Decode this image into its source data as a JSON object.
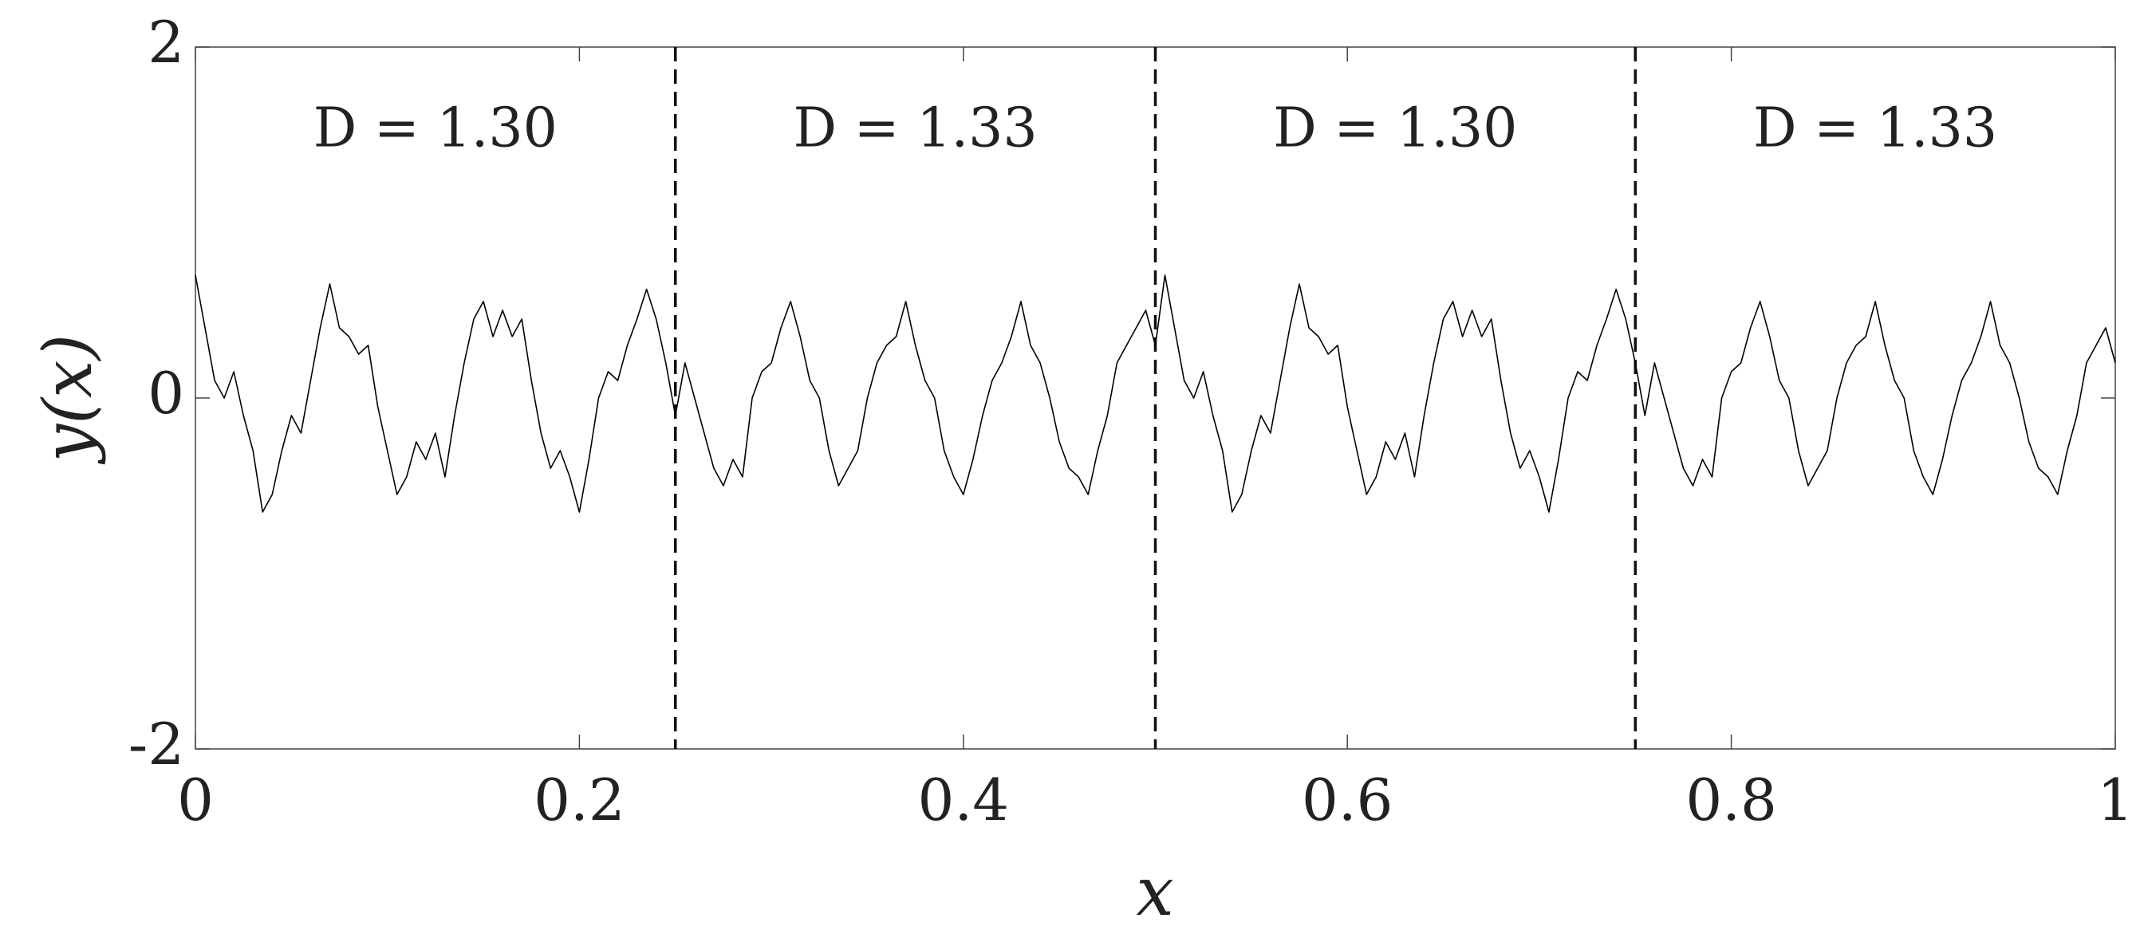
{
  "chart_data": {
    "type": "line",
    "xlabel": "x",
    "ylabel": "y(x)",
    "annotations": [
      "D = 1.30",
      "D = 1.33",
      "D = 1.30",
      "D = 1.33"
    ],
    "vlines": [
      0.25,
      0.5,
      0.75
    ],
    "color": "#000000",
    "xlim": [
      0,
      1
    ],
    "xticks": [
      0,
      0.2,
      0.4,
      0.6,
      0.8,
      1
    ],
    "ylim": [
      -2,
      2
    ],
    "yticks": [
      -2,
      0,
      2
    ],
    "grid": false,
    "x": [
      0,
      0.005,
      0.01,
      0.015,
      0.02,
      0.025,
      0.03,
      0.035,
      0.04,
      0.045,
      0.05,
      0.055,
      0.06,
      0.065,
      0.07,
      0.075,
      0.08,
      0.085,
      0.09,
      0.095,
      0.1,
      0.105,
      0.11,
      0.115,
      0.12,
      0.125,
      0.13,
      0.135,
      0.14,
      0.145,
      0.15,
      0.155,
      0.16,
      0.165,
      0.17,
      0.175,
      0.18,
      0.185,
      0.19,
      0.195,
      0.2,
      0.205,
      0.21,
      0.215,
      0.22,
      0.225,
      0.23,
      0.235,
      0.24,
      0.245,
      0.25,
      0.255,
      0.26,
      0.265,
      0.27,
      0.275,
      0.28,
      0.285,
      0.29,
      0.295,
      0.3,
      0.305,
      0.31,
      0.315,
      0.32,
      0.325,
      0.33,
      0.335,
      0.34,
      0.345,
      0.35,
      0.355,
      0.36,
      0.365,
      0.37,
      0.375,
      0.38,
      0.385,
      0.39,
      0.395,
      0.4,
      0.405,
      0.41,
      0.415,
      0.42,
      0.425,
      0.43,
      0.435,
      0.44,
      0.445,
      0.45,
      0.455,
      0.46,
      0.465,
      0.47,
      0.475,
      0.48,
      0.485,
      0.49,
      0.495,
      0.5,
      0.505,
      0.51,
      0.515,
      0.52,
      0.525,
      0.53,
      0.535,
      0.54,
      0.545,
      0.55,
      0.555,
      0.56,
      0.565,
      0.57,
      0.575,
      0.58,
      0.585,
      0.59,
      0.595,
      0.6,
      0.605,
      0.61,
      0.615,
      0.62,
      0.625,
      0.63,
      0.635,
      0.64,
      0.645,
      0.65,
      0.655,
      0.66,
      0.665,
      0.67,
      0.675,
      0.68,
      0.685,
      0.69,
      0.695,
      0.7,
      0.705,
      0.71,
      0.715,
      0.72,
      0.725,
      0.73,
      0.735,
      0.74,
      0.745,
      0.75,
      0.755,
      0.76,
      0.765,
      0.77,
      0.775,
      0.78,
      0.785,
      0.79,
      0.795,
      0.8,
      0.805,
      0.81,
      0.815,
      0.82,
      0.825,
      0.83,
      0.835,
      0.84,
      0.845,
      0.85,
      0.855,
      0.86,
      0.865,
      0.87,
      0.875,
      0.88,
      0.885,
      0.89,
      0.895,
      0.9,
      0.905,
      0.91,
      0.915,
      0.92,
      0.925,
      0.93,
      0.935,
      0.94,
      0.945,
      0.95,
      0.955,
      0.96,
      0.965,
      0.97,
      0.975,
      0.98,
      0.985,
      0.99,
      0.995,
      1
    ],
    "values": [
      0.7,
      0.4,
      0.1,
      0.0,
      0.15,
      -0.1,
      -0.3,
      -0.65,
      -0.55,
      -0.3,
      -0.1,
      -0.2,
      0.1,
      0.4,
      0.65,
      0.4,
      0.35,
      0.25,
      0.3,
      -0.05,
      -0.3,
      -0.55,
      -0.45,
      -0.25,
      -0.35,
      -0.2,
      -0.45,
      -0.1,
      0.2,
      0.45,
      0.55,
      0.35,
      0.5,
      0.35,
      0.45,
      0.1,
      -0.2,
      -0.4,
      -0.3,
      -0.45,
      -0.65,
      -0.35,
      0.0,
      0.15,
      0.1,
      0.3,
      0.45,
      0.62,
      0.45,
      0.2,
      -0.1,
      0.2,
      0.0,
      -0.2,
      -0.4,
      -0.5,
      -0.35,
      -0.45,
      0.0,
      0.15,
      0.2,
      0.4,
      0.55,
      0.35,
      0.1,
      0.0,
      -0.3,
      -0.5,
      -0.4,
      -0.3,
      0.0,
      0.2,
      0.3,
      0.35,
      0.55,
      0.3,
      0.1,
      0.0,
      -0.3,
      -0.45,
      -0.55,
      -0.35,
      -0.1,
      0.1,
      0.2,
      0.35,
      0.55,
      0.3,
      0.2,
      0.0,
      -0.25,
      -0.4,
      -0.45,
      -0.55,
      -0.3,
      -0.1,
      0.2,
      0.3,
      0.4,
      0.5,
      0.3,
      0.7,
      0.4,
      0.1,
      0.0,
      0.15,
      -0.1,
      -0.3,
      -0.65,
      -0.55,
      -0.3,
      -0.1,
      -0.2,
      0.1,
      0.4,
      0.65,
      0.4,
      0.35,
      0.25,
      0.3,
      -0.05,
      -0.3,
      -0.55,
      -0.45,
      -0.25,
      -0.35,
      -0.2,
      -0.45,
      -0.1,
      0.2,
      0.45,
      0.55,
      0.35,
      0.5,
      0.35,
      0.45,
      0.1,
      -0.2,
      -0.4,
      -0.3,
      -0.45,
      -0.65,
      -0.35,
      0.0,
      0.15,
      0.1,
      0.3,
      0.45,
      0.62,
      0.45,
      0.2,
      -0.1,
      0.2,
      0.0,
      -0.2,
      -0.4,
      -0.5,
      -0.35,
      -0.45,
      0.0,
      0.15,
      0.2,
      0.4,
      0.55,
      0.35,
      0.1,
      0.0,
      -0.3,
      -0.5,
      -0.4,
      -0.3,
      0.0,
      0.2,
      0.3,
      0.35,
      0.55,
      0.3,
      0.1,
      0.0,
      -0.3,
      -0.45,
      -0.55,
      -0.35,
      -0.1,
      0.1,
      0.2,
      0.35,
      0.55,
      0.3,
      0.2,
      0.0,
      -0.25,
      -0.4,
      -0.45,
      -0.55,
      -0.3,
      -0.1,
      0.2,
      0.3,
      0.4,
      0.2
    ]
  }
}
